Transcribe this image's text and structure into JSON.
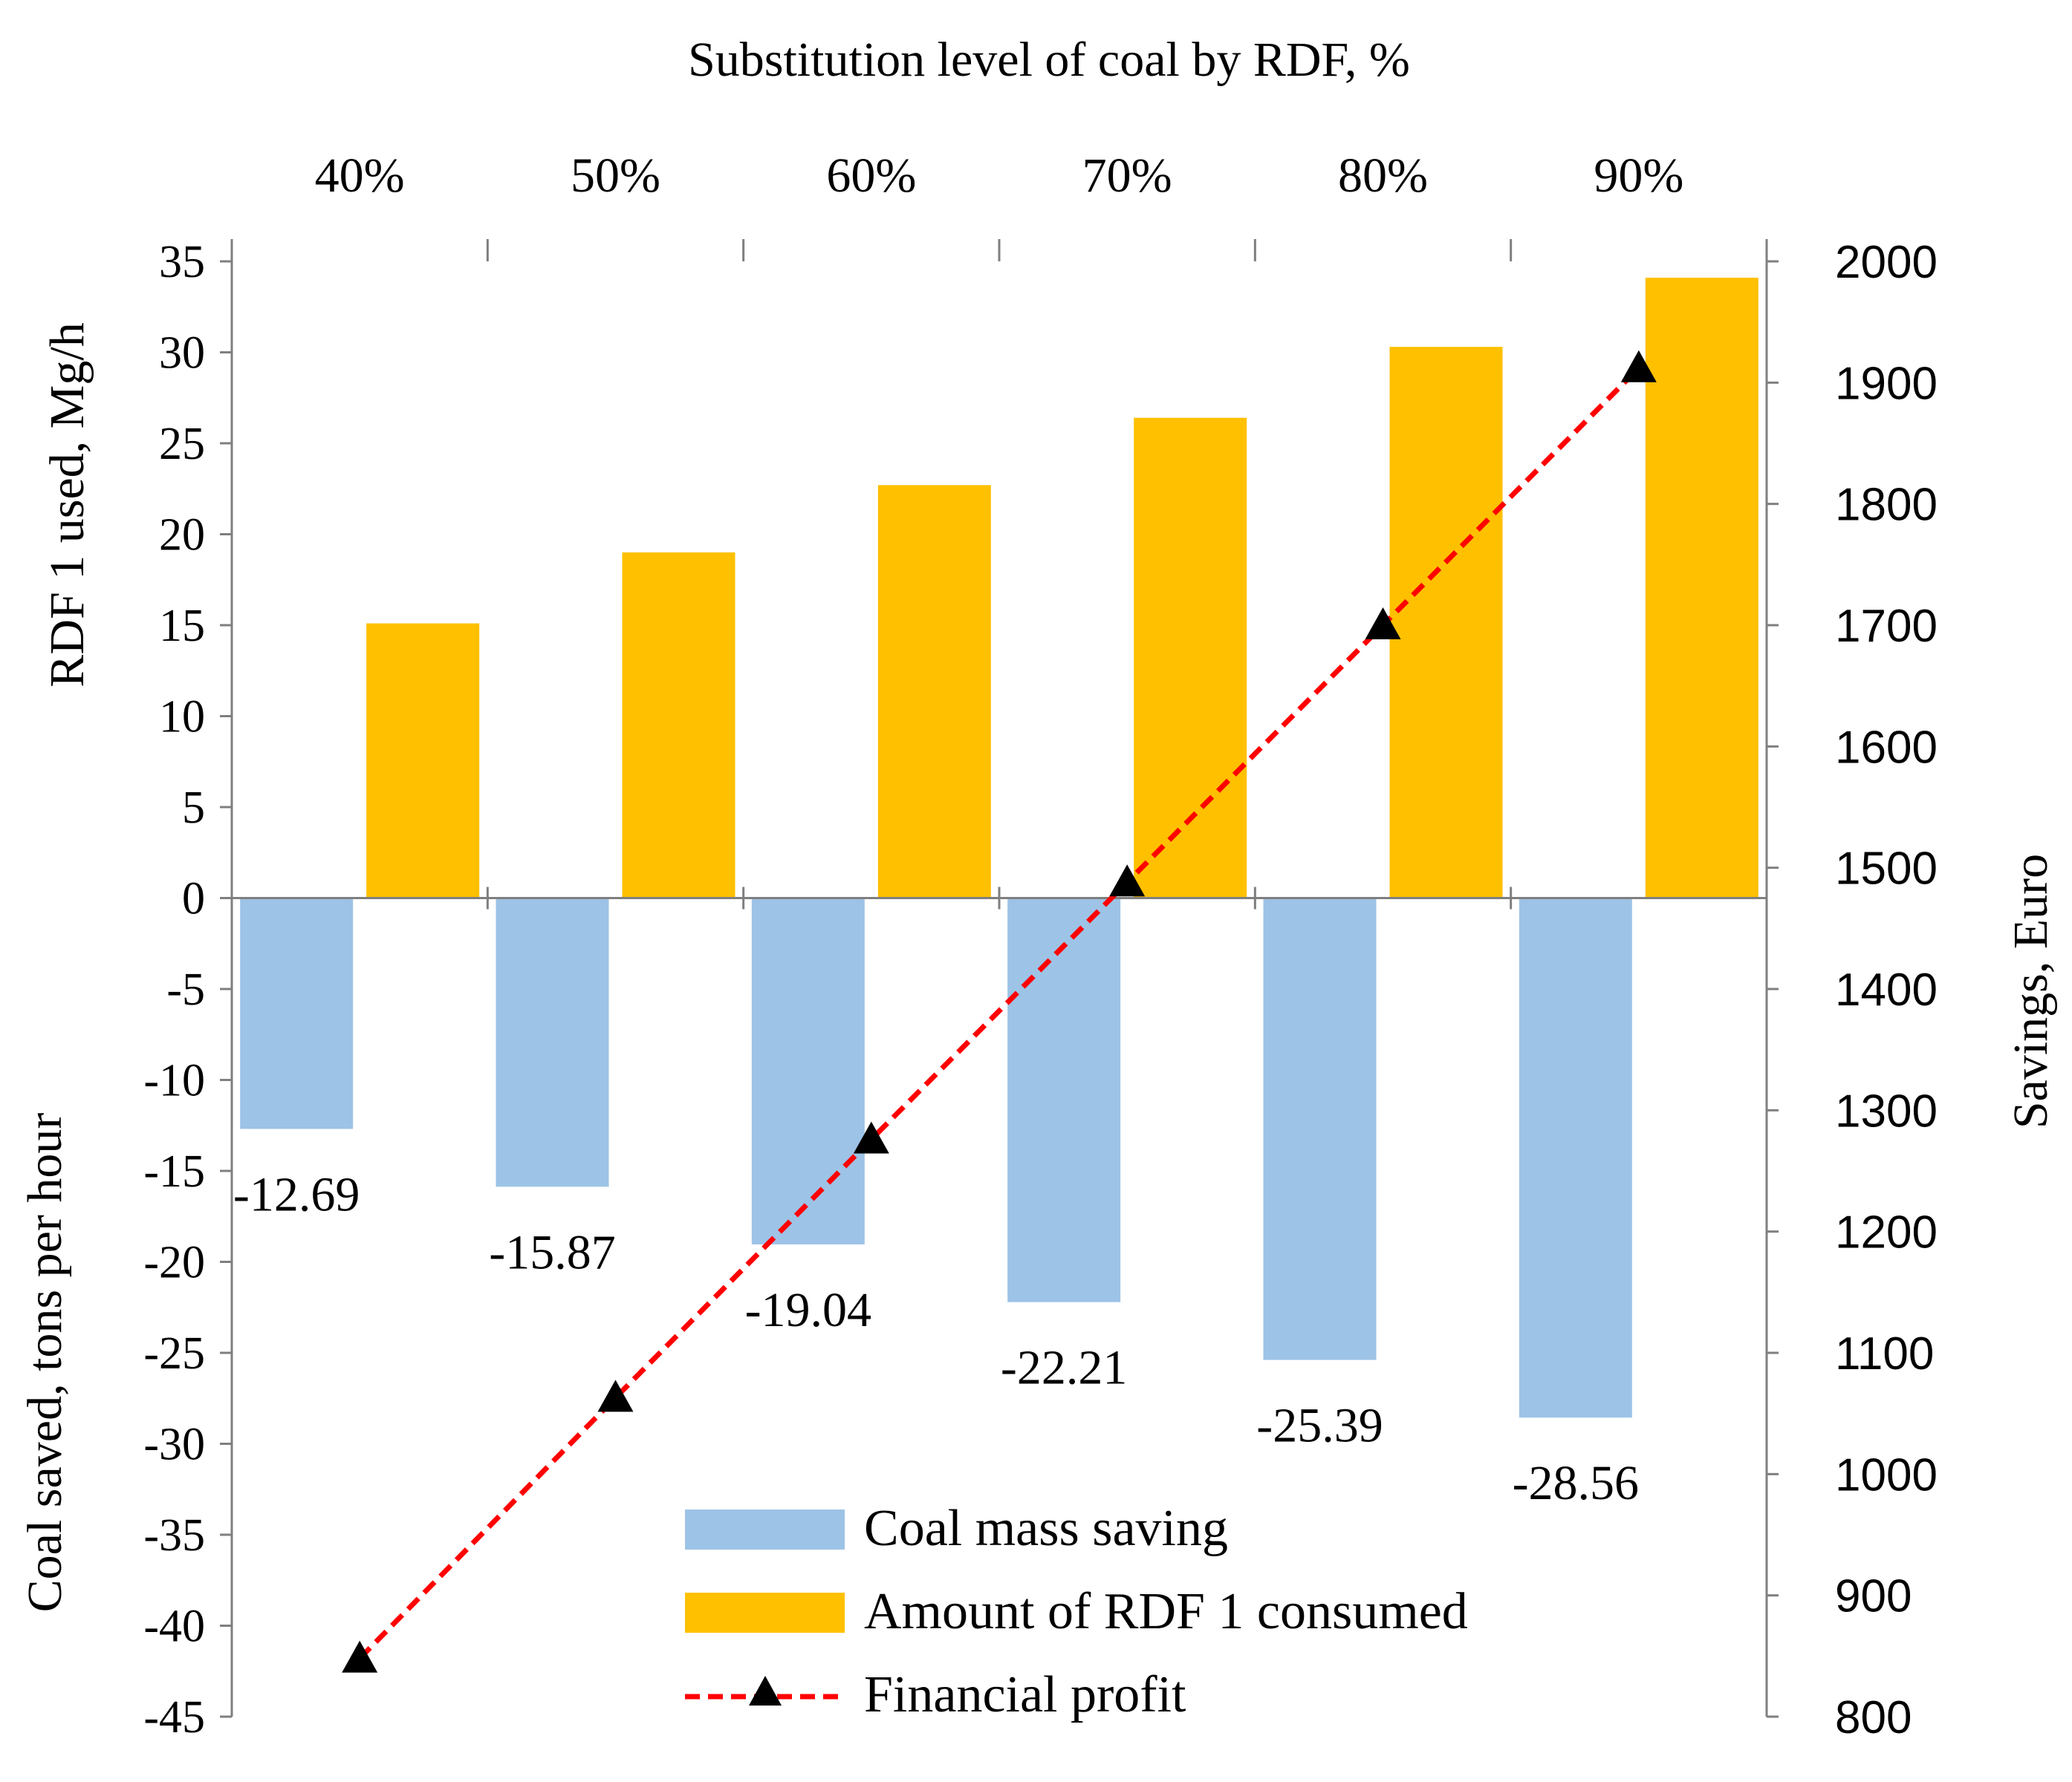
{
  "chart_data": {
    "type": "bar",
    "title": "Substitution level of  coal by RDF, %",
    "categories": [
      "40%",
      "50%",
      "60%",
      "70%",
      "80%",
      "90%"
    ],
    "series": [
      {
        "name": "Coal mass saving",
        "axis": "left",
        "color": "#9DC3E6",
        "values": [
          -12.69,
          -15.87,
          -19.04,
          -22.21,
          -25.39,
          -28.56
        ],
        "data_labels": [
          "-12.69",
          "-15.87",
          "-19.04",
          "-22.21",
          "-25.39",
          "-28.56"
        ]
      },
      {
        "name": "Amount of RDF 1 consumed",
        "axis": "left",
        "color": "#FFC000",
        "values": [
          15.1,
          19.0,
          22.7,
          26.4,
          30.3,
          34.1
        ]
      },
      {
        "name": "Financial profit",
        "axis": "right",
        "type": "line",
        "color": "#FF0000",
        "marker": "triangle",
        "marker_color": "#000000",
        "values": [
          848,
          1063,
          1276,
          1488,
          1700,
          1912
        ]
      }
    ],
    "left_axis": {
      "label_upper": "RDF 1 used, Mg/h",
      "label_lower": "Coal saved, tons per hour",
      "ylim": [
        -45,
        35
      ],
      "ticks": [
        35,
        30,
        25,
        20,
        15,
        10,
        5,
        0,
        -5,
        -10,
        -15,
        -20,
        -25,
        -30,
        -35,
        -40,
        -45
      ]
    },
    "right_axis": {
      "label": "Savings, Euro",
      "ylim": [
        800,
        2000
      ],
      "ticks": [
        2000,
        1900,
        1800,
        1700,
        1600,
        1500,
        1400,
        1300,
        1200,
        1100,
        1000,
        900,
        800
      ]
    },
    "x_axis": {
      "position": "top"
    },
    "legend": {
      "placement": "bottom-center",
      "entries": [
        "Coal mass saving",
        "Amount of RDF 1 consumed",
        "Financial profit"
      ]
    }
  }
}
